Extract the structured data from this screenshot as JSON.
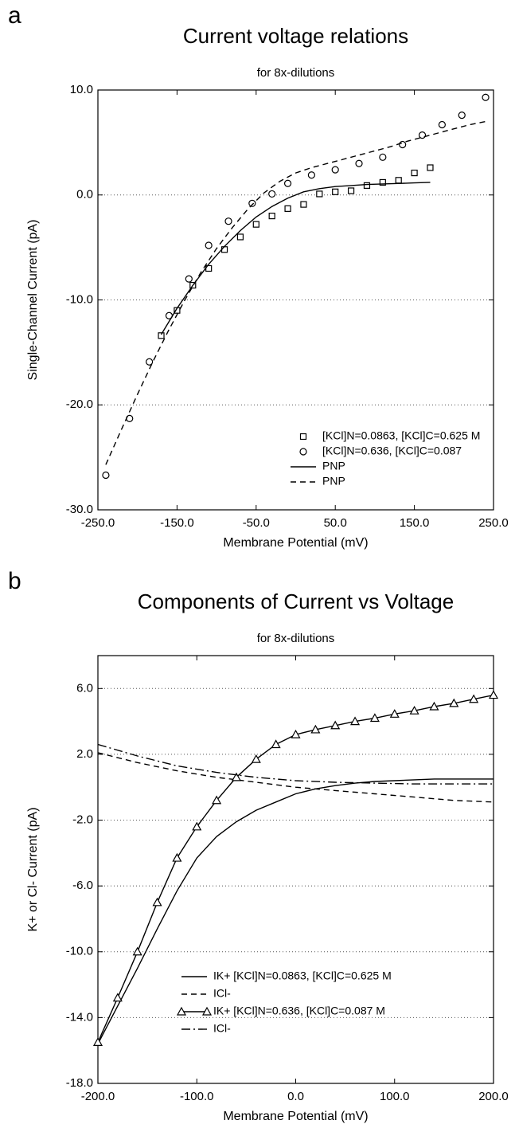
{
  "chart_data": [
    {
      "type": "line",
      "panel_label": "a",
      "title": "Current voltage relations",
      "subtitle": "for 8x-dilutions",
      "x_label": "Membrane Potential (mV)",
      "y_label": "Single-Channel Current (pA)",
      "xlim": [
        -250,
        250
      ],
      "xticks": [
        {
          "value": -250,
          "label": "-250.0"
        },
        {
          "value": -150,
          "label": "-150.0"
        },
        {
          "value": -50,
          "label": "-50.0"
        },
        {
          "value": 50,
          "label": "50.0"
        },
        {
          "value": 150,
          "label": "150.0"
        },
        {
          "value": 250,
          "label": "250.0"
        }
      ],
      "ylim": [
        -30,
        10
      ],
      "yticks": [
        {
          "value": -30,
          "label": "-30.0"
        },
        {
          "value": -20,
          "label": "-20.0"
        },
        {
          "value": -10,
          "label": "-10.0"
        },
        {
          "value": 0,
          "label": "0.0"
        },
        {
          "value": 10,
          "label": "10.0"
        }
      ],
      "grid": true,
      "legend": "lower right",
      "series": [
        {
          "name": "[KCl]N=0.0863, [KCl]C=0.625 M",
          "color": "#000000",
          "marker": "square",
          "linestyle": "none",
          "x": [
            -170,
            -150,
            -130,
            -110,
            -90,
            -70,
            -50,
            -30,
            -10,
            10,
            30,
            50,
            70,
            90,
            110,
            130,
            150,
            170
          ],
          "values": [
            -13.4,
            -11.0,
            -8.6,
            -7.0,
            -5.2,
            -4.0,
            -2.8,
            -2.0,
            -1.3,
            -0.9,
            0.1,
            0.3,
            0.4,
            0.9,
            1.2,
            1.4,
            2.1,
            2.6
          ]
        },
        {
          "name": "[KCl]N=0.636, [KCl]C=0.087",
          "color": "#000000",
          "marker": "circle",
          "linestyle": "none",
          "x": [
            -240,
            -210,
            -185,
            -160,
            -135,
            -110,
            -85,
            -55,
            -30,
            -10,
            20,
            50,
            80,
            110,
            135,
            160,
            185,
            210,
            240
          ],
          "values": [
            -26.7,
            -21.3,
            -15.9,
            -11.5,
            -8.0,
            -4.8,
            -2.5,
            -0.8,
            0.1,
            1.1,
            1.9,
            2.4,
            3.0,
            3.6,
            4.8,
            5.7,
            6.7,
            7.6,
            9.3
          ]
        },
        {
          "name": "PNP",
          "color": "#000000",
          "marker": null,
          "linestyle": "solid",
          "x": [
            -170,
            -150,
            -130,
            -110,
            -90,
            -70,
            -50,
            -30,
            -10,
            10,
            30,
            50,
            70,
            90,
            110,
            130,
            150,
            170
          ],
          "values": [
            -13.3,
            -10.8,
            -8.6,
            -6.6,
            -4.9,
            -3.4,
            -2.1,
            -1.1,
            -0.3,
            0.3,
            0.6,
            0.8,
            0.9,
            1.0,
            1.05,
            1.1,
            1.15,
            1.2
          ]
        },
        {
          "name": "PNP",
          "color": "#000000",
          "marker": null,
          "linestyle": "dashed",
          "x": [
            -240,
            -220,
            -200,
            -180,
            -160,
            -140,
            -120,
            -100,
            -80,
            -60,
            -40,
            -20,
            0,
            20,
            40,
            60,
            80,
            100,
            120,
            140,
            160,
            180,
            200,
            220,
            240
          ],
          "values": [
            -25.7,
            -22.3,
            -19.0,
            -15.8,
            -12.8,
            -10.0,
            -7.4,
            -5.1,
            -3.1,
            -1.3,
            0.2,
            1.3,
            2.1,
            2.6,
            3.0,
            3.4,
            3.8,
            4.2,
            4.6,
            5.1,
            5.5,
            5.9,
            6.3,
            6.7,
            7.0
          ]
        }
      ]
    },
    {
      "type": "line",
      "panel_label": "b",
      "title": "Components of Current vs Voltage",
      "subtitle": "for 8x-dilutions",
      "x_label": "Membrane Potential (mV)",
      "y_label": "K+ or Cl- Current (pA)",
      "xlim": [
        -200,
        200
      ],
      "xticks": [
        {
          "value": -200,
          "label": "-200.0"
        },
        {
          "value": -100,
          "label": "-100.0"
        },
        {
          "value": 0,
          "label": "0.0"
        },
        {
          "value": 100,
          "label": "100.0"
        },
        {
          "value": 200,
          "label": "200.0"
        }
      ],
      "ylim": [
        -18,
        8
      ],
      "yticks": [
        {
          "value": -18,
          "label": "-18.0"
        },
        {
          "value": -14,
          "label": "-14.0"
        },
        {
          "value": -10,
          "label": "-10.0"
        },
        {
          "value": -6,
          "label": "-6.0"
        },
        {
          "value": -2,
          "label": "-2.0"
        },
        {
          "value": 2,
          "label": "2.0"
        },
        {
          "value": 6,
          "label": "6.0"
        }
      ],
      "grid": true,
      "legend": "lower center",
      "series": [
        {
          "name": "IK+ [KCl]N=0.0863, [KCl]C=0.625 M",
          "color": "#000000",
          "marker": null,
          "linestyle": "solid",
          "x": [
            -200,
            -180,
            -160,
            -140,
            -120,
            -100,
            -80,
            -60,
            -40,
            -20,
            0,
            20,
            40,
            60,
            80,
            100,
            120,
            140,
            160,
            180,
            200
          ],
          "values": [
            -15.6,
            -13.3,
            -11.0,
            -8.6,
            -6.3,
            -4.3,
            -3.0,
            -2.1,
            -1.4,
            -0.9,
            -0.4,
            -0.1,
            0.1,
            0.25,
            0.35,
            0.4,
            0.45,
            0.5,
            0.5,
            0.5,
            0.5
          ]
        },
        {
          "name": "ICl-",
          "color": "#000000",
          "marker": null,
          "linestyle": "dashed",
          "x": [
            -200,
            -160,
            -120,
            -80,
            -40,
            0,
            40,
            80,
            120,
            160,
            200
          ],
          "values": [
            2.1,
            1.5,
            1.0,
            0.6,
            0.3,
            0.0,
            -0.2,
            -0.4,
            -0.6,
            -0.8,
            -0.9
          ]
        },
        {
          "name": "IK+ [KCl]N=0.636, [KCl]C=0.087 M",
          "color": "#000000",
          "marker": "triangle",
          "linestyle": "solid",
          "x": [
            -200,
            -180,
            -160,
            -140,
            -120,
            -100,
            -80,
            -60,
            -40,
            -20,
            0,
            20,
            40,
            60,
            80,
            100,
            120,
            140,
            160,
            180,
            200
          ],
          "values": [
            -15.5,
            -12.8,
            -10.0,
            -7.0,
            -4.3,
            -2.4,
            -0.8,
            0.6,
            1.7,
            2.6,
            3.2,
            3.5,
            3.75,
            4.0,
            4.2,
            4.45,
            4.65,
            4.9,
            5.1,
            5.35,
            5.6
          ]
        },
        {
          "name": "ICl-",
          "color": "#000000",
          "marker": null,
          "linestyle": "dashdot",
          "x": [
            -200,
            -160,
            -120,
            -80,
            -40,
            0,
            40,
            80,
            120,
            160,
            200
          ],
          "values": [
            2.6,
            1.9,
            1.3,
            0.9,
            0.6,
            0.4,
            0.3,
            0.25,
            0.2,
            0.2,
            0.2
          ]
        }
      ]
    }
  ]
}
